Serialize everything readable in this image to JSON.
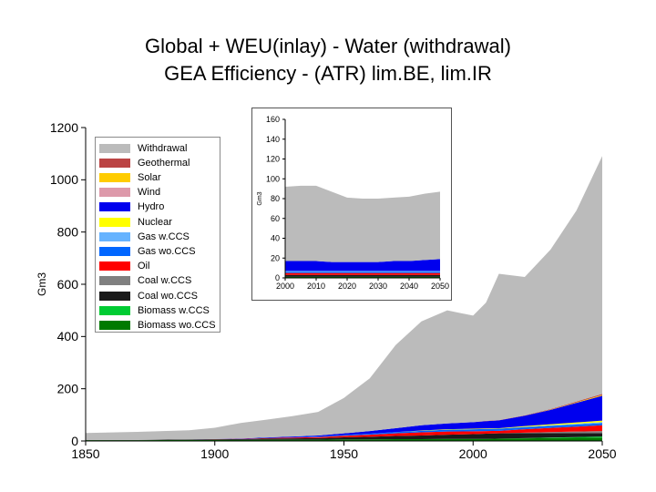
{
  "title_line1": "Global + WEU(inlay) - Water (withdrawal)",
  "title_line2": "GEA Efficiency - (ATR) lim.BE, lim.IR",
  "chart_data": [
    {
      "type": "area",
      "stacked": true,
      "title": "Global + WEU(inlay) - Water (withdrawal) GEA Efficiency - (ATR) lim.BE, lim.IR",
      "ylabel": "Gm3",
      "xlim": [
        1850,
        2050
      ],
      "ylim": [
        0,
        1200
      ],
      "x_ticks": [
        1850,
        1900,
        1950,
        2000,
        2050
      ],
      "y_ticks": [
        0,
        200,
        400,
        600,
        800,
        1000,
        1200
      ],
      "legend_position": "top-left",
      "grid": false,
      "x": [
        1850,
        1870,
        1890,
        1900,
        1910,
        1920,
        1930,
        1940,
        1950,
        1960,
        1970,
        1980,
        1990,
        2000,
        2005,
        2010,
        2020,
        2030,
        2040,
        2050
      ],
      "series": [
        {
          "name": "Biomass wo.CCS",
          "color": "#007a00",
          "values": [
            3,
            3,
            4,
            4,
            4,
            5,
            5,
            5,
            6,
            6,
            7,
            7,
            8,
            8,
            8,
            9,
            10,
            11,
            12,
            13
          ]
        },
        {
          "name": "Biomass w.CCS",
          "color": "#00cc33",
          "values": [
            0,
            0,
            0,
            0,
            0,
            0,
            0,
            0,
            0,
            0,
            0,
            0,
            0,
            0,
            0,
            0,
            1,
            2,
            3,
            4
          ]
        },
        {
          "name": "Coal wo.CCS",
          "color": "#1a1a1a",
          "values": [
            0.5,
            1,
            2,
            2.5,
            3,
            4,
            5,
            6,
            8,
            10,
            12,
            14,
            16,
            18,
            20,
            20,
            19,
            17,
            15,
            13
          ]
        },
        {
          "name": "Coal w.CCS",
          "color": "#808080",
          "values": [
            0,
            0,
            0,
            0,
            0,
            0,
            0,
            0,
            0,
            0,
            0,
            0,
            0,
            0,
            0,
            0,
            2,
            4,
            6,
            8
          ]
        },
        {
          "name": "Oil",
          "color": "#ff0000",
          "values": [
            0,
            0,
            0,
            0.5,
            1,
            2,
            3,
            4,
            6,
            8,
            10,
            12,
            12,
            11,
            10,
            10,
            13,
            16,
            19,
            22
          ]
        },
        {
          "name": "Gas wo.CCS",
          "color": "#0066ff",
          "values": [
            0,
            0,
            0,
            0,
            0,
            0.5,
            1,
            2,
            3,
            4,
            5,
            6,
            7,
            8,
            8,
            8,
            8,
            8,
            8,
            8
          ]
        },
        {
          "name": "Gas w.CCS",
          "color": "#66b3ff",
          "values": [
            0,
            0,
            0,
            0,
            0,
            0,
            0,
            0,
            0,
            0,
            0,
            0,
            0,
            0,
            0,
            0,
            1,
            2,
            3,
            4
          ]
        },
        {
          "name": "Nuclear",
          "color": "#ffff00",
          "values": [
            0,
            0,
            0,
            0,
            0,
            0,
            0,
            0,
            0,
            0,
            0,
            1,
            2,
            2,
            2,
            2,
            3,
            4,
            5,
            6
          ]
        },
        {
          "name": "Hydro",
          "color": "#0000ee",
          "values": [
            0,
            0,
            0,
            0.5,
            1,
            2,
            3,
            4,
            6,
            10,
            15,
            20,
            22,
            25,
            28,
            30,
            40,
            55,
            75,
            95
          ]
        },
        {
          "name": "Wind",
          "color": "#dd99aa",
          "values": [
            0,
            0,
            0,
            0,
            0,
            0,
            0,
            0,
            0,
            0,
            0,
            0,
            0,
            0,
            0,
            0,
            0,
            0,
            0,
            0
          ]
        },
        {
          "name": "Solar",
          "color": "#ffcc00",
          "values": [
            0,
            0,
            0,
            0,
            0,
            0,
            0,
            0,
            0,
            0,
            0,
            0,
            0,
            0,
            0,
            0,
            0,
            1,
            2,
            3
          ]
        },
        {
          "name": "Geothermal",
          "color": "#bb4444",
          "values": [
            0,
            0,
            0,
            0,
            0,
            0,
            0,
            0,
            0,
            0,
            0,
            0,
            0,
            0,
            1,
            1,
            1,
            2,
            3,
            4
          ]
        },
        {
          "name": "Withdrawal",
          "color": "#bbbbbb",
          "values": [
            27,
            31,
            35,
            43,
            60,
            68,
            78,
            90,
            136,
            202,
            318,
            398,
            433,
            408,
            453,
            560,
            530,
            611,
            731,
            911
          ]
        }
      ]
    },
    {
      "type": "area",
      "stacked": true,
      "inset": true,
      "ylabel": "Gm3",
      "xlim": [
        2000,
        2050
      ],
      "ylim": [
        0,
        160
      ],
      "x_ticks": [
        2000,
        2010,
        2020,
        2030,
        2040,
        2050
      ],
      "y_ticks": [
        0,
        20,
        40,
        60,
        80,
        100,
        120,
        140,
        160
      ],
      "grid": false,
      "x": [
        2000,
        2005,
        2010,
        2015,
        2020,
        2025,
        2030,
        2035,
        2040,
        2045,
        2050
      ],
      "series": [
        {
          "name": "Biomass wo.CCS",
          "color": "#007a00",
          "values": [
            1,
            1,
            1,
            1,
            1,
            1,
            1,
            1,
            1,
            1,
            1
          ]
        },
        {
          "name": "Coal wo.CCS",
          "color": "#1a1a1a",
          "values": [
            2,
            2,
            2,
            2,
            2,
            2,
            2,
            2,
            2,
            2,
            2
          ]
        },
        {
          "name": "Oil",
          "color": "#ff0000",
          "values": [
            2,
            2,
            2,
            2,
            2,
            2,
            2,
            2,
            2,
            2,
            2
          ]
        },
        {
          "name": "Gas wo.CCS",
          "color": "#0066ff",
          "values": [
            1,
            1,
            1,
            1,
            1,
            1,
            1,
            1,
            1,
            1,
            1
          ]
        },
        {
          "name": "Gas w.CCS",
          "color": "#66b3ff",
          "values": [
            1,
            1,
            1,
            1,
            1,
            1,
            1,
            1,
            1,
            1,
            1
          ]
        },
        {
          "name": "Hydro",
          "color": "#0000ee",
          "values": [
            10,
            10,
            10,
            9,
            9,
            9,
            9,
            10,
            10,
            11,
            12
          ]
        },
        {
          "name": "Withdrawal",
          "color": "#bbbbbb",
          "values": [
            75,
            76,
            76,
            71,
            65,
            64,
            64,
            64,
            65,
            67,
            68
          ]
        }
      ]
    }
  ]
}
